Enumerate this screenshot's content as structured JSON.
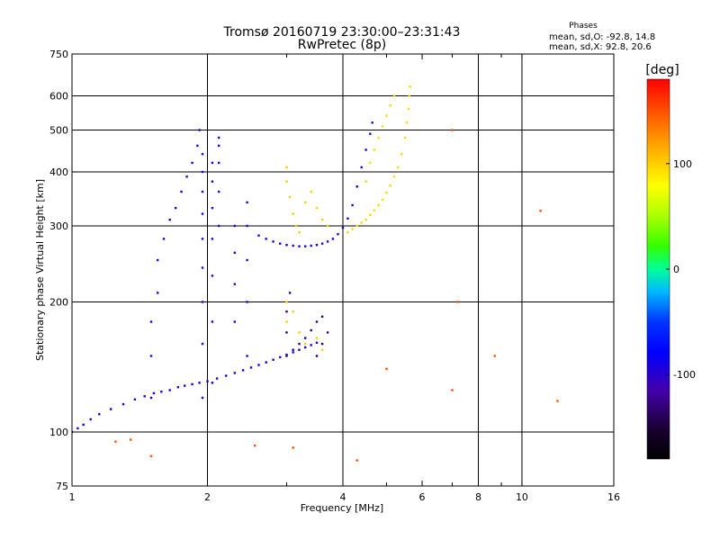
{
  "chart_data": {
    "type": "scatter",
    "title": "Tromsø 20160719 23:30:00–23:31:43",
    "subtitle": "RwPretec (8p)",
    "xlabel": "Frequency [MHz]",
    "ylabel": "Stationary phase Virtual Height [km]",
    "x_scale": "log",
    "y_scale": "log",
    "xlim": [
      1,
      16
    ],
    "ylim": [
      75,
      750
    ],
    "x_ticks": [
      1,
      2,
      4,
      6,
      8,
      10,
      16
    ],
    "x_tick_labels": [
      "1",
      "2",
      "4",
      "6",
      "8",
      "10",
      "16"
    ],
    "x_minor_ticks": [
      3,
      5,
      7,
      9
    ],
    "x_grid": [
      2,
      4,
      8,
      10
    ],
    "y_ticks": [
      75,
      100,
      200,
      300,
      400,
      500,
      600,
      750
    ],
    "y_tick_labels": [
      "75",
      "100",
      "200",
      "300",
      "400",
      "500",
      "600",
      "750"
    ],
    "y_grid": [
      100,
      200,
      300,
      400,
      500,
      600
    ],
    "grid": true,
    "stats": {
      "header": "Phases",
      "o_line": "mean, sd,O: -92.8, 14.8",
      "x_line": "mean, sd,X:  92.8, 20.6"
    },
    "colorbar": {
      "label": "[deg]",
      "range": [
        -180,
        180
      ],
      "ticks": [
        100,
        0,
        -100
      ],
      "tick_labels": [
        "100",
        "0",
        "-100"
      ]
    },
    "series": [
      {
        "trace": "O-mode F2 (blue)",
        "phase_deg": -95,
        "points": [
          [
            1.0,
            100
          ],
          [
            1.03,
            102
          ],
          [
            1.06,
            104
          ],
          [
            1.1,
            107
          ],
          [
            1.15,
            110
          ],
          [
            1.22,
            113
          ],
          [
            1.3,
            116
          ],
          [
            1.38,
            119
          ],
          [
            1.45,
            121
          ],
          [
            1.52,
            123
          ],
          [
            1.58,
            124
          ],
          [
            1.65,
            125
          ],
          [
            1.72,
            127
          ],
          [
            1.78,
            128
          ],
          [
            1.85,
            129
          ],
          [
            1.92,
            130
          ],
          [
            2.0,
            131
          ],
          [
            2.1,
            133
          ],
          [
            2.2,
            135
          ],
          [
            2.3,
            137
          ],
          [
            2.4,
            139
          ],
          [
            2.5,
            141
          ],
          [
            2.6,
            143
          ],
          [
            2.7,
            145
          ],
          [
            2.8,
            147
          ],
          [
            2.9,
            149
          ],
          [
            3.0,
            151
          ],
          [
            3.1,
            153
          ],
          [
            3.2,
            155
          ],
          [
            3.3,
            157
          ],
          [
            3.4,
            159
          ],
          [
            3.5,
            161
          ],
          [
            2.6,
            285
          ],
          [
            2.7,
            280
          ],
          [
            2.8,
            276
          ],
          [
            2.9,
            273
          ],
          [
            3.0,
            271
          ],
          [
            3.1,
            270
          ],
          [
            3.2,
            269
          ],
          [
            3.3,
            269
          ],
          [
            3.4,
            270
          ],
          [
            3.5,
            271
          ],
          [
            3.6,
            273
          ],
          [
            3.7,
            276
          ],
          [
            3.8,
            280
          ],
          [
            3.9,
            287
          ],
          [
            4.0,
            297
          ],
          [
            4.1,
            312
          ],
          [
            4.2,
            335
          ],
          [
            4.3,
            370
          ],
          [
            4.4,
            410
          ],
          [
            4.5,
            450
          ],
          [
            4.6,
            490
          ],
          [
            4.65,
            520
          ],
          [
            1.5,
            120
          ],
          [
            1.5,
            150
          ],
          [
            1.5,
            180
          ],
          [
            1.55,
            210
          ],
          [
            1.55,
            250
          ],
          [
            1.6,
            280
          ],
          [
            1.65,
            310
          ],
          [
            1.7,
            330
          ],
          [
            1.75,
            360
          ],
          [
            1.8,
            390
          ],
          [
            1.85,
            420
          ],
          [
            1.9,
            460
          ],
          [
            1.92,
            500
          ],
          [
            1.95,
            120
          ],
          [
            1.95,
            160
          ],
          [
            1.95,
            200
          ],
          [
            1.95,
            240
          ],
          [
            1.95,
            280
          ],
          [
            1.95,
            320
          ],
          [
            1.95,
            360
          ],
          [
            1.95,
            400
          ],
          [
            1.95,
            440
          ],
          [
            2.05,
            130
          ],
          [
            2.05,
            180
          ],
          [
            2.05,
            230
          ],
          [
            2.05,
            280
          ],
          [
            2.05,
            330
          ],
          [
            2.05,
            380
          ],
          [
            2.05,
            420
          ],
          [
            2.12,
            300
          ],
          [
            2.12,
            360
          ],
          [
            2.12,
            420
          ],
          [
            2.12,
            460
          ],
          [
            2.12,
            480
          ],
          [
            2.3,
            180
          ],
          [
            2.3,
            220
          ],
          [
            2.3,
            260
          ],
          [
            2.3,
            300
          ],
          [
            2.45,
            150
          ],
          [
            2.45,
            200
          ],
          [
            2.45,
            250
          ],
          [
            2.45,
            300
          ],
          [
            2.45,
            340
          ]
        ]
      },
      {
        "trace": "X-mode F2 (yellow)",
        "phase_deg": 95,
        "points": [
          [
            4.1,
            290
          ],
          [
            4.2,
            295
          ],
          [
            4.3,
            300
          ],
          [
            4.4,
            305
          ],
          [
            4.5,
            310
          ],
          [
            4.6,
            318
          ],
          [
            4.7,
            326
          ],
          [
            4.8,
            335
          ],
          [
            4.9,
            345
          ],
          [
            5.0,
            358
          ],
          [
            5.1,
            372
          ],
          [
            5.2,
            390
          ],
          [
            5.3,
            410
          ],
          [
            5.4,
            440
          ],
          [
            5.5,
            480
          ],
          [
            5.55,
            520
          ],
          [
            5.6,
            560
          ],
          [
            5.62,
            600
          ],
          [
            5.64,
            630
          ],
          [
            4.5,
            380
          ],
          [
            4.6,
            420
          ],
          [
            4.7,
            450
          ],
          [
            4.8,
            480
          ],
          [
            4.9,
            510
          ],
          [
            5.0,
            540
          ],
          [
            5.1,
            570
          ],
          [
            5.2,
            600
          ]
        ]
      },
      {
        "trace": "X-mode F1 (yellow)",
        "phase_deg": 100,
        "points": [
          [
            3.0,
            410
          ],
          [
            3.0,
            380
          ],
          [
            3.05,
            350
          ],
          [
            3.1,
            320
          ],
          [
            3.15,
            300
          ],
          [
            3.2,
            290
          ],
          [
            3.3,
            340
          ],
          [
            3.4,
            360
          ],
          [
            3.5,
            330
          ],
          [
            3.6,
            310
          ],
          [
            3.7,
            300
          ]
        ]
      },
      {
        "trace": "O-mode F1 (purple)",
        "phase_deg": -130,
        "points": [
          [
            3.0,
            150
          ],
          [
            3.1,
            155
          ],
          [
            3.2,
            160
          ],
          [
            3.3,
            165
          ],
          [
            3.4,
            172
          ],
          [
            3.5,
            180
          ],
          [
            3.6,
            185
          ],
          [
            3.0,
            170
          ],
          [
            3.0,
            190
          ],
          [
            3.05,
            210
          ],
          [
            3.5,
            150
          ],
          [
            3.6,
            160
          ],
          [
            3.7,
            170
          ]
        ]
      },
      {
        "trace": "O-mode F1 (yellow)",
        "phase_deg": 100,
        "points": [
          [
            3.0,
            200
          ],
          [
            3.0,
            180
          ],
          [
            3.1,
            190
          ],
          [
            3.2,
            170
          ],
          [
            3.3,
            160
          ],
          [
            3.5,
            165
          ],
          [
            3.6,
            155
          ]
        ]
      },
      {
        "trace": "scattered echoes",
        "phase_deg": 150,
        "points": [
          [
            1.5,
            88
          ],
          [
            2.55,
            93
          ],
          [
            3.1,
            92
          ],
          [
            1.25,
            95
          ],
          [
            1.35,
            96
          ],
          [
            7.0,
            500
          ],
          [
            7.2,
            200
          ],
          [
            7.0,
            125
          ],
          [
            8.7,
            150
          ],
          [
            11.0,
            325
          ],
          [
            12.0,
            118
          ],
          [
            4.3,
            86
          ],
          [
            5.0,
            140
          ]
        ]
      }
    ]
  }
}
